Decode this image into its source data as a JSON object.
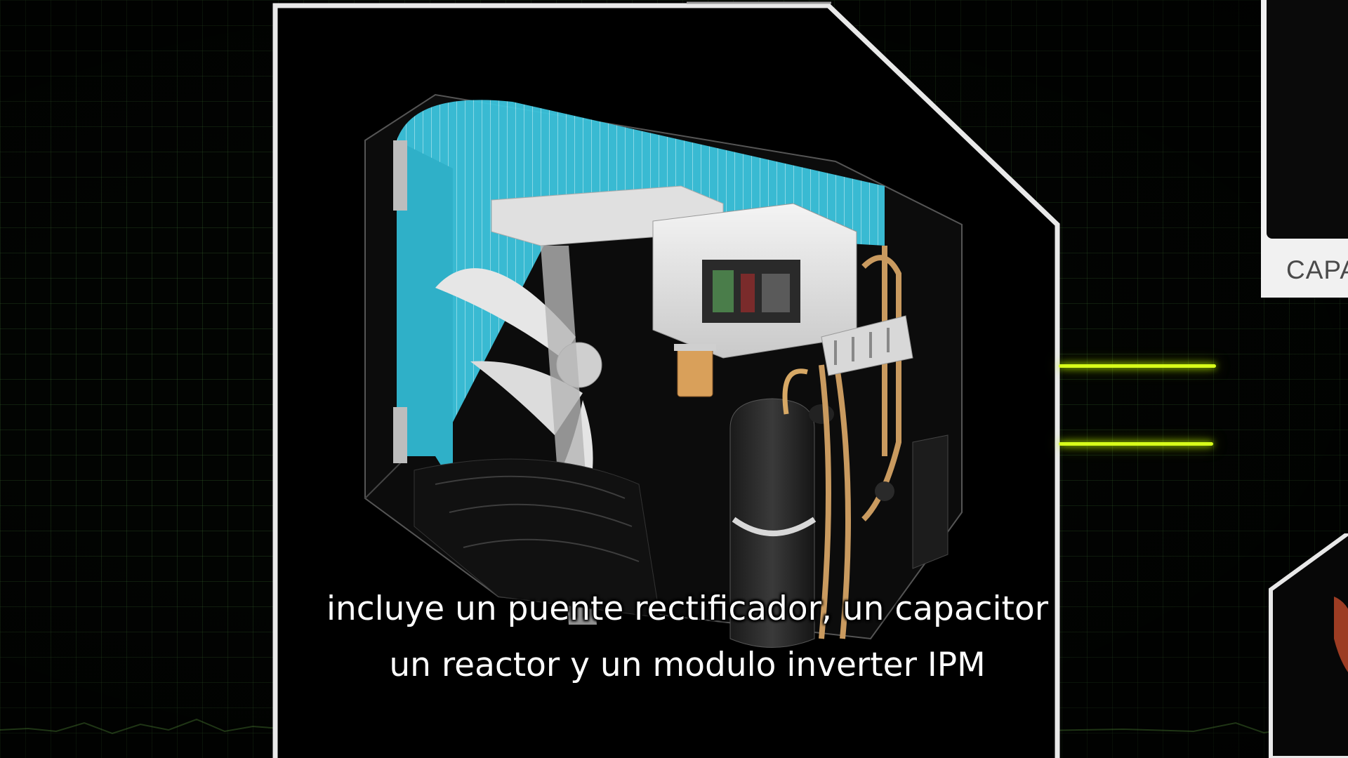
{
  "subtitle": {
    "line1": "incluye un puente rectificador, un capacitor",
    "line2": "un reactor y un modulo inverter IPM"
  },
  "side_panel": {
    "label": "CAPA"
  },
  "colors": {
    "neon": "#d8ff1a",
    "coil": "#3cc6de",
    "frame": "#e8e8e8",
    "grid": "#3c6e32"
  },
  "icons": {
    "unit": "air-conditioner-outdoor-unit-cutaway"
  }
}
